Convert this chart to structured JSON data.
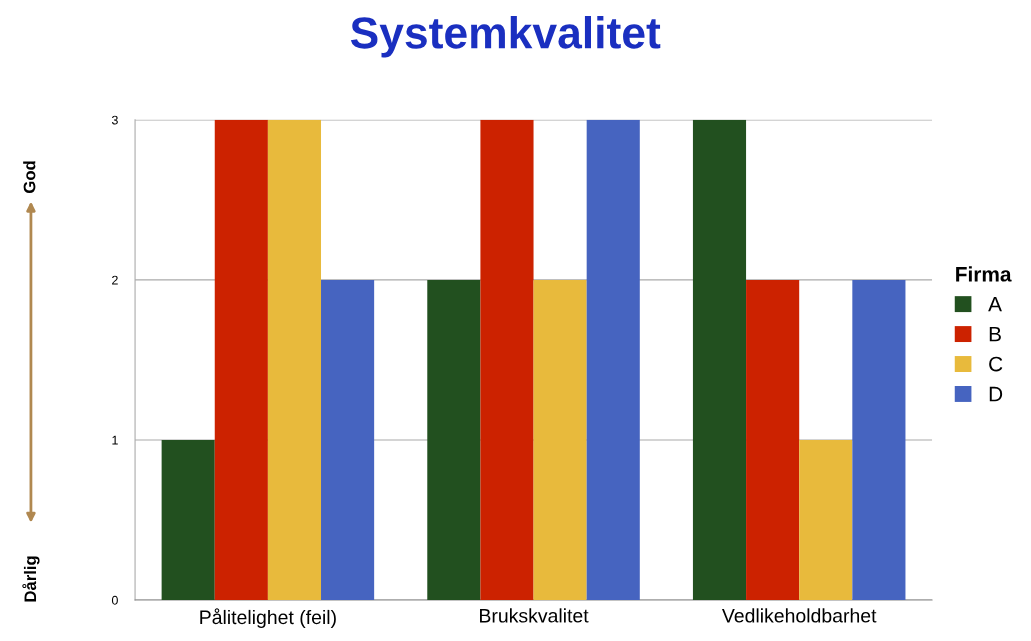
{
  "chart_data": {
    "type": "bar",
    "title": "Systemkvalitet",
    "categories": [
      "Pålitelighet (feil)",
      "Brukskvalitet",
      "Vedlikeholdbarhet"
    ],
    "series": [
      {
        "name": "A",
        "color": "#22501f",
        "values": [
          1,
          2,
          3
        ]
      },
      {
        "name": "B",
        "color": "#cc2200",
        "values": [
          3,
          3,
          2
        ]
      },
      {
        "name": "C",
        "color": "#e8ba3c",
        "values": [
          3,
          2,
          1
        ]
      },
      {
        "name": "D",
        "color": "#4664c0",
        "values": [
          2,
          3,
          2
        ]
      }
    ],
    "ylim": [
      0,
      3
    ],
    "yticks": [
      0,
      1,
      2,
      3
    ],
    "grid": "y",
    "legend": "right",
    "legend_title": "Firma",
    "annotations": [
      "God",
      "Dårlig"
    ]
  }
}
